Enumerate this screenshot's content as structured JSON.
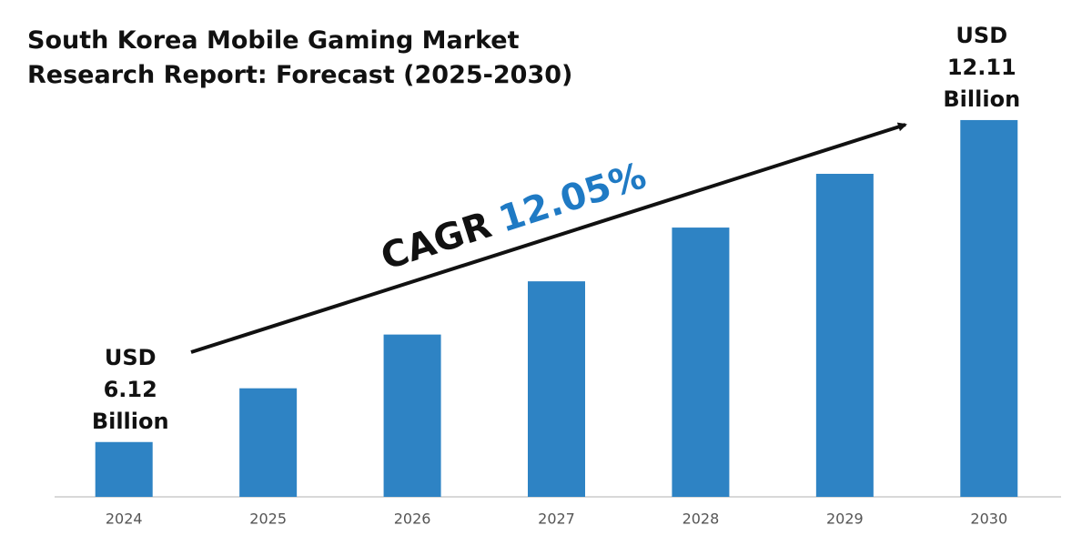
{
  "chart_data": {
    "type": "bar",
    "title": "South Korea Mobile Gaming Market Research Report: Forecast (2025-2030)",
    "categories": [
      "2024",
      "2025",
      "2026",
      "2027",
      "2028",
      "2029",
      "2030"
    ],
    "values": [
      6.12,
      7.12,
      8.12,
      9.11,
      10.11,
      11.11,
      12.11
    ],
    "value_labels": [
      "USD 6.12 Billion",
      null,
      null,
      null,
      null,
      null,
      "USD 12.11 Billion"
    ],
    "color": "#2e83c4",
    "ylim": [
      5.1,
      12.6
    ],
    "annotation": {
      "text": "CAGR",
      "value": "12.05%",
      "value_color": "#1f7ac4"
    }
  }
}
